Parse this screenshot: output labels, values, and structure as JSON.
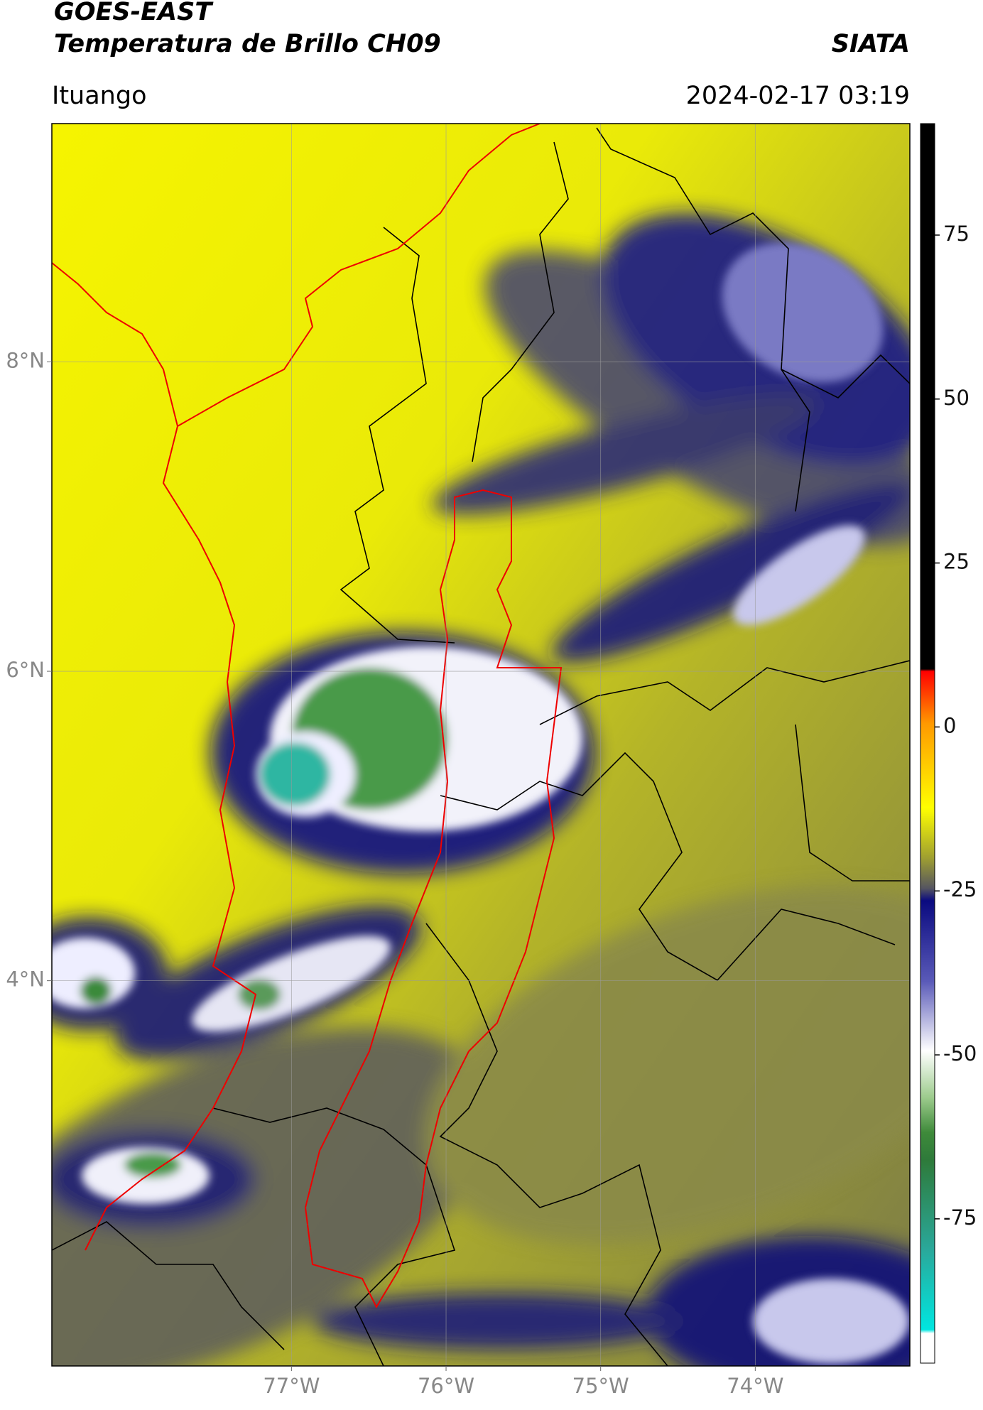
{
  "header": {
    "title": "GOES-EAST",
    "subtitle": "Temperatura de Brillo CH09",
    "source": "SIATA",
    "location": "Ituango",
    "datetime": "2024-02-17 03:19"
  },
  "map": {
    "xlim": [
      -78.55,
      -73.0
    ],
    "ylim": [
      1.51,
      9.54
    ],
    "xticks": [
      {
        "value": -77,
        "label": "77°W"
      },
      {
        "value": -76,
        "label": "76°W"
      },
      {
        "value": -75,
        "label": "75°W"
      },
      {
        "value": -74,
        "label": "74°W"
      }
    ],
    "yticks": [
      {
        "value": 4,
        "label": "4°N"
      },
      {
        "value": 6,
        "label": "6°N"
      },
      {
        "value": 8,
        "label": "8°N"
      }
    ],
    "grid": true
  },
  "colorbar": {
    "lim": [
      -97,
      92
    ],
    "ticks": [
      -75,
      -50,
      -25,
      0,
      25,
      50,
      75
    ]
  }
}
